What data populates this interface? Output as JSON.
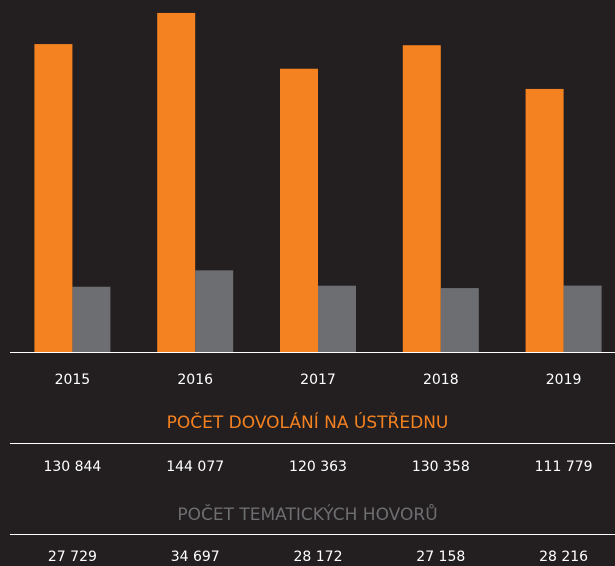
{
  "chart_data": {
    "type": "bar",
    "categories": [
      "2015",
      "2016",
      "2017",
      "2018",
      "2019"
    ],
    "series": [
      {
        "name": "POČET DOVOLÁNÍ NA ÚSTŘEDNU",
        "color": "#f58220",
        "values": [
          130844,
          144077,
          120363,
          130358,
          111779
        ],
        "value_labels": [
          "130 844",
          "144 077",
          "120 363",
          "130 358",
          "111 779"
        ]
      },
      {
        "name": "POČET TEMATICKÝCH HOVORŮ",
        "color": "#6d6e71",
        "values": [
          27729,
          34697,
          28172,
          27158,
          28216
        ],
        "value_labels": [
          "27 729",
          "34 697",
          "28 172",
          "27 158",
          "28 216"
        ]
      }
    ],
    "ylim": [
      0,
      150000
    ]
  }
}
